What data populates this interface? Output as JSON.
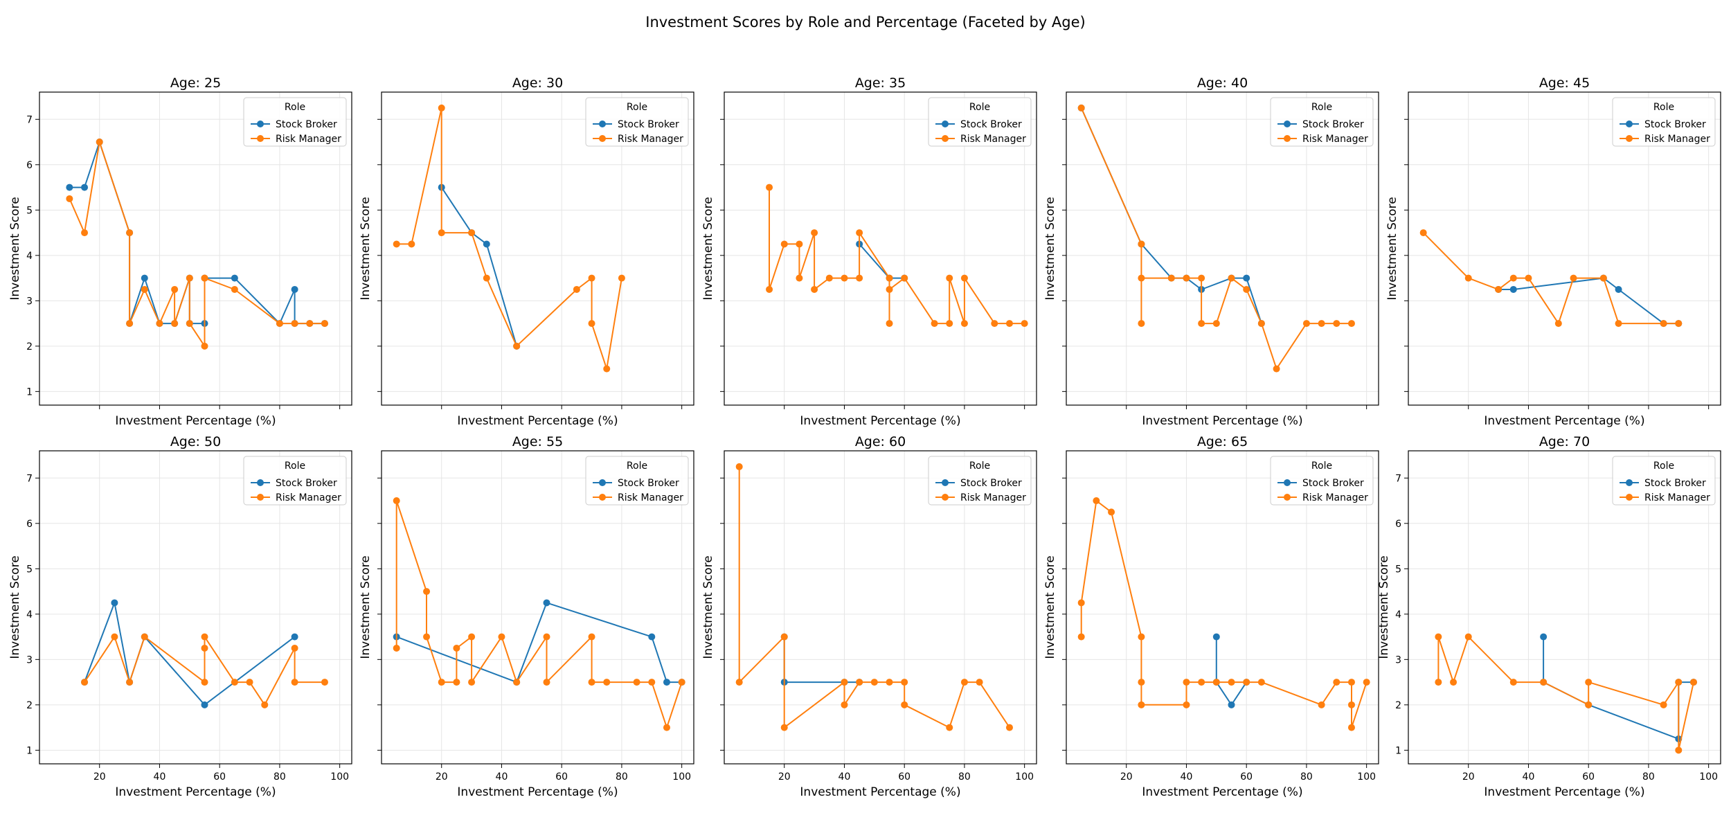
{
  "title": "Investment Scores by Role and Percentage (Faceted by Age)",
  "colors": {
    "stock_broker": "#1f77b4",
    "risk_manager": "#ff7f0e",
    "grid": "#e5e5e5",
    "frame": "#000000"
  },
  "chart_data": [
    {
      "type": "line",
      "title": "Age: 25",
      "xlabel": "Investment Percentage (%)",
      "ylabel": "Investment Score",
      "xlim": [
        0,
        104
      ],
      "ylim": [
        0.7,
        7.6
      ],
      "xticks": [
        20,
        40,
        60,
        80,
        100
      ],
      "yticks": [
        1,
        2,
        3,
        4,
        5,
        6,
        7
      ],
      "show_xtick_labels": false,
      "show_ytick_labels": true,
      "grid": true,
      "legend": {
        "title": "Role",
        "location": "top-right"
      },
      "series": [
        {
          "name": "Stock Broker",
          "x": [
            10,
            15,
            20,
            30,
            30,
            35,
            40,
            45,
            50,
            50,
            55,
            55,
            65,
            80,
            85,
            85,
            90,
            95
          ],
          "y": [
            5.5,
            5.5,
            6.5,
            4.5,
            2.5,
            3.5,
            2.5,
            2.5,
            3.5,
            2.5,
            2.5,
            3.5,
            3.5,
            2.5,
            3.25,
            2.5,
            2.5,
            2.5
          ]
        },
        {
          "name": "Risk Manager",
          "x": [
            10,
            15,
            20,
            30,
            30,
            35,
            40,
            45,
            45,
            50,
            50,
            55,
            55,
            55,
            65,
            80,
            85,
            90,
            95
          ],
          "y": [
            5.25,
            4.5,
            6.5,
            4.5,
            2.5,
            3.25,
            2.5,
            3.25,
            2.5,
            3.5,
            2.5,
            2.0,
            3.5,
            3.5,
            3.25,
            2.5,
            2.5,
            2.5,
            2.5
          ]
        }
      ]
    },
    {
      "type": "line",
      "title": "Age: 30",
      "xlabel": "Investment Percentage (%)",
      "ylabel": "Investment Score",
      "xlim": [
        0,
        104
      ],
      "ylim": [
        0.7,
        7.6
      ],
      "xticks": [
        20,
        40,
        60,
        80,
        100
      ],
      "yticks": [
        1,
        2,
        3,
        4,
        5,
        6,
        7
      ],
      "show_xtick_labels": false,
      "show_ytick_labels": false,
      "grid": true,
      "legend": {
        "title": "Role",
        "location": "top-right"
      },
      "series": [
        {
          "name": "Stock Broker",
          "x": [
            20,
            30,
            35,
            45
          ],
          "y": [
            5.5,
            4.5,
            4.25,
            2.0
          ]
        },
        {
          "name": "Risk Manager",
          "x": [
            5,
            10,
            20,
            20,
            30,
            35,
            45,
            65,
            70,
            70,
            75,
            80
          ],
          "y": [
            4.25,
            4.25,
            7.25,
            4.5,
            4.5,
            3.5,
            2.0,
            3.25,
            3.5,
            2.5,
            1.5,
            3.5
          ]
        }
      ]
    },
    {
      "type": "line",
      "title": "Age: 35",
      "xlabel": "Investment Percentage (%)",
      "ylabel": "Investment Score",
      "xlim": [
        0,
        104
      ],
      "ylim": [
        0.7,
        7.6
      ],
      "xticks": [
        20,
        40,
        60,
        80,
        100
      ],
      "yticks": [
        1,
        2,
        3,
        4,
        5,
        6,
        7
      ],
      "show_xtick_labels": false,
      "show_ytick_labels": false,
      "grid": true,
      "legend": {
        "title": "Role",
        "location": "top-right"
      },
      "series": [
        {
          "name": "Stock Broker",
          "x": [
            45,
            55,
            60
          ],
          "y": [
            4.25,
            3.5,
            3.5
          ]
        },
        {
          "name": "Risk Manager",
          "x": [
            15,
            15,
            20,
            25,
            25,
            30,
            30,
            35,
            40,
            45,
            45,
            55,
            55,
            55,
            60,
            70,
            75,
            75,
            80,
            80,
            90,
            95,
            100
          ],
          "y": [
            5.5,
            3.25,
            4.25,
            4.25,
            3.5,
            4.5,
            3.25,
            3.5,
            3.5,
            3.5,
            4.5,
            3.5,
            2.5,
            3.25,
            3.5,
            2.5,
            2.5,
            3.5,
            2.5,
            3.5,
            2.5,
            2.5,
            2.5
          ]
        }
      ]
    },
    {
      "type": "line",
      "title": "Age: 40",
      "xlabel": "Investment Percentage (%)",
      "ylabel": "Investment Score",
      "xlim": [
        0,
        104
      ],
      "ylim": [
        0.7,
        7.6
      ],
      "xticks": [
        20,
        40,
        60,
        80,
        100
      ],
      "yticks": [
        1,
        2,
        3,
        4,
        5,
        6,
        7
      ],
      "show_xtick_labels": false,
      "show_ytick_labels": false,
      "grid": true,
      "legend": {
        "title": "Role",
        "location": "top-right"
      },
      "series": [
        {
          "name": "Stock Broker",
          "x": [
            5,
            25,
            35,
            40,
            45,
            55,
            60,
            65
          ],
          "y": [
            7.25,
            4.25,
            3.5,
            3.5,
            3.25,
            3.5,
            3.5,
            2.5
          ]
        },
        {
          "name": "Risk Manager",
          "x": [
            5,
            25,
            25,
            25,
            35,
            40,
            45,
            45,
            50,
            55,
            60,
            65,
            70,
            80,
            85,
            90,
            95
          ],
          "y": [
            7.25,
            4.25,
            2.5,
            3.5,
            3.5,
            3.5,
            3.5,
            2.5,
            2.5,
            3.5,
            3.25,
            2.5,
            1.5,
            2.5,
            2.5,
            2.5,
            2.5
          ]
        }
      ]
    },
    {
      "type": "line",
      "title": "Age: 45",
      "xlabel": "Investment Percentage (%)",
      "ylabel": "Investment Score",
      "xlim": [
        0,
        104
      ],
      "ylim": [
        0.7,
        7.6
      ],
      "xticks": [
        20,
        40,
        60,
        80,
        100
      ],
      "yticks": [
        1,
        2,
        3,
        4,
        5,
        6,
        7
      ],
      "show_xtick_labels": false,
      "show_ytick_labels": false,
      "grid": true,
      "legend": {
        "title": "Role",
        "location": "top-right"
      },
      "series": [
        {
          "name": "Stock Broker",
          "x": [
            30,
            35,
            65,
            70,
            85,
            90
          ],
          "y": [
            3.25,
            3.25,
            3.5,
            3.25,
            2.5,
            2.5
          ]
        },
        {
          "name": "Risk Manager",
          "x": [
            5,
            20,
            30,
            35,
            40,
            50,
            55,
            65,
            70,
            85,
            90
          ],
          "y": [
            4.5,
            3.5,
            3.25,
            3.5,
            3.5,
            2.5,
            3.5,
            3.5,
            2.5,
            2.5,
            2.5
          ]
        }
      ]
    },
    {
      "type": "line",
      "title": "Age: 50",
      "xlabel": "Investment Percentage (%)",
      "ylabel": "Investment Score",
      "xlim": [
        0,
        104
      ],
      "ylim": [
        0.7,
        7.6
      ],
      "xticks": [
        20,
        40,
        60,
        80,
        100
      ],
      "yticks": [
        1,
        2,
        3,
        4,
        5,
        6,
        7
      ],
      "show_xtick_labels": true,
      "show_ytick_labels": true,
      "grid": true,
      "legend": {
        "title": "Role",
        "location": "top-right"
      },
      "series": [
        {
          "name": "Stock Broker",
          "x": [
            15,
            25,
            30,
            35,
            55,
            85
          ],
          "y": [
            2.5,
            4.25,
            2.5,
            3.5,
            2.0,
            3.5
          ]
        },
        {
          "name": "Risk Manager",
          "x": [
            15,
            25,
            30,
            35,
            55,
            55,
            55,
            65,
            70,
            75,
            85,
            85,
            95
          ],
          "y": [
            2.5,
            3.5,
            2.5,
            3.5,
            2.5,
            3.25,
            3.5,
            2.5,
            2.5,
            2.0,
            3.25,
            2.5,
            2.5
          ]
        }
      ]
    },
    {
      "type": "line",
      "title": "Age: 55",
      "xlabel": "Investment Percentage (%)",
      "ylabel": "Investment Score",
      "xlim": [
        0,
        104
      ],
      "ylim": [
        0.7,
        7.6
      ],
      "xticks": [
        20,
        40,
        60,
        80,
        100
      ],
      "yticks": [
        1,
        2,
        3,
        4,
        5,
        6,
        7
      ],
      "show_xtick_labels": true,
      "show_ytick_labels": false,
      "grid": true,
      "legend": {
        "title": "Role",
        "location": "top-right"
      },
      "series": [
        {
          "name": "Stock Broker",
          "x": [
            5,
            45,
            55,
            90,
            95,
            100
          ],
          "y": [
            3.5,
            2.5,
            4.25,
            3.5,
            2.5,
            2.5
          ]
        },
        {
          "name": "Risk Manager",
          "x": [
            5,
            5,
            15,
            15,
            20,
            25,
            25,
            30,
            30,
            40,
            45,
            55,
            55,
            70,
            70,
            75,
            85,
            90,
            95,
            100
          ],
          "y": [
            3.25,
            6.5,
            4.5,
            3.5,
            2.5,
            2.5,
            3.25,
            3.5,
            2.5,
            3.5,
            2.5,
            3.5,
            2.5,
            3.5,
            2.5,
            2.5,
            2.5,
            2.5,
            1.5,
            2.5
          ]
        }
      ]
    },
    {
      "type": "line",
      "title": "Age: 60",
      "xlabel": "Investment Percentage (%)",
      "ylabel": "Investment Score",
      "xlim": [
        0,
        104
      ],
      "ylim": [
        0.7,
        7.6
      ],
      "xticks": [
        20,
        40,
        60,
        80,
        100
      ],
      "yticks": [
        1,
        2,
        3,
        4,
        5,
        6,
        7
      ],
      "show_xtick_labels": true,
      "show_ytick_labels": false,
      "grid": true,
      "legend": {
        "title": "Role",
        "location": "top-right"
      },
      "series": [
        {
          "name": "Stock Broker",
          "x": [
            20,
            20,
            40,
            45
          ],
          "y": [
            3.5,
            2.5,
            2.5,
            2.5
          ]
        },
        {
          "name": "Risk Manager",
          "x": [
            5,
            5,
            20,
            20,
            40,
            40,
            45,
            50,
            55,
            60,
            60,
            75,
            80,
            85,
            95
          ],
          "y": [
            7.25,
            2.5,
            3.5,
            1.5,
            2.5,
            2.0,
            2.5,
            2.5,
            2.5,
            2.5,
            2.0,
            1.5,
            2.5,
            2.5,
            1.5
          ]
        }
      ]
    },
    {
      "type": "line",
      "title": "Age: 65",
      "xlabel": "Investment Percentage (%)",
      "ylabel": "Investment Score",
      "xlim": [
        0,
        104
      ],
      "ylim": [
        0.7,
        7.6
      ],
      "xticks": [
        20,
        40,
        60,
        80,
        100
      ],
      "yticks": [
        1,
        2,
        3,
        4,
        5,
        6,
        7
      ],
      "show_xtick_labels": true,
      "show_ytick_labels": false,
      "grid": true,
      "legend": {
        "title": "Role",
        "location": "top-right"
      },
      "series": [
        {
          "name": "Stock Broker",
          "x": [
            50,
            50,
            55,
            60
          ],
          "y": [
            3.5,
            2.5,
            2.0,
            2.5
          ]
        },
        {
          "name": "Risk Manager",
          "x": [
            5,
            5,
            10,
            15,
            25,
            25,
            25,
            40,
            40,
            45,
            50,
            55,
            60,
            65,
            85,
            90,
            95,
            95,
            95,
            100
          ],
          "y": [
            3.5,
            4.25,
            6.5,
            6.25,
            3.5,
            2.5,
            2.0,
            2.0,
            2.5,
            2.5,
            2.5,
            2.5,
            2.5,
            2.5,
            2.0,
            2.5,
            2.5,
            2.0,
            1.5,
            2.5
          ]
        }
      ]
    },
    {
      "type": "line",
      "title": "Age: 70",
      "xlabel": "Investment Percentage (%)",
      "ylabel": "Investment Score",
      "xlim": [
        0,
        104
      ],
      "ylim": [
        0.7,
        7.6
      ],
      "xticks": [
        20,
        40,
        60,
        80,
        100
      ],
      "yticks": [
        1,
        2,
        3,
        4,
        5,
        6,
        7
      ],
      "show_xtick_labels": true,
      "show_ytick_labels": true,
      "grid": true,
      "legend": {
        "title": "Role",
        "location": "top-right"
      },
      "series": [
        {
          "name": "Stock Broker",
          "x": [
            45,
            45,
            60,
            90,
            90,
            95
          ],
          "y": [
            3.5,
            2.5,
            2.0,
            1.25,
            2.5,
            2.5
          ]
        },
        {
          "name": "Risk Manager",
          "x": [
            10,
            10,
            15,
            20,
            35,
            45,
            60,
            60,
            85,
            90,
            90,
            95
          ],
          "y": [
            2.5,
            3.5,
            2.5,
            3.5,
            2.5,
            2.5,
            2.0,
            2.5,
            2.0,
            2.5,
            1.0,
            2.5
          ]
        }
      ]
    }
  ]
}
